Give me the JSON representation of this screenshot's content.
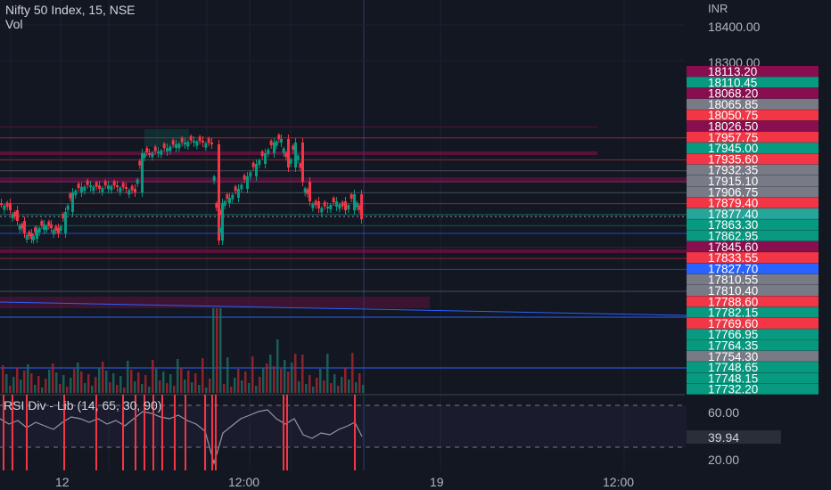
{
  "chart_title": "Nifty 50 Index, 15, NSE",
  "volume_label": "Vol",
  "currency": "INR",
  "rsi_title": "RSI Div - Lib (14, 65, 30, 90)",
  "price_axis_ticks": [
    "18400.00",
    "18300.00"
  ],
  "price_tags": [
    {
      "value": "18113.20",
      "color": "#880e4f"
    },
    {
      "value": "18110.45",
      "color": "#089981"
    },
    {
      "value": "18068.20",
      "color": "#880e4f"
    },
    {
      "value": "18065.85",
      "color": "#787b86"
    },
    {
      "value": "18050.75",
      "color": "#f23645"
    },
    {
      "value": "18026.50",
      "color": "#880e4f"
    },
    {
      "value": "17957.75",
      "color": "#f23645"
    },
    {
      "value": "17945.00",
      "color": "#089981"
    },
    {
      "value": "17935.60",
      "color": "#f23645"
    },
    {
      "value": "17932.35",
      "color": "#787b86"
    },
    {
      "value": "17915.10",
      "color": "#787b86"
    },
    {
      "value": "17906.75",
      "color": "#787b86"
    },
    {
      "value": "17879.40",
      "color": "#f23645"
    },
    {
      "value": "17877.40",
      "color": "#26a69a"
    },
    {
      "value": "17863.30",
      "color": "#089981"
    },
    {
      "value": "17862.95",
      "color": "#089981"
    },
    {
      "value": "17845.60",
      "color": "#880e4f"
    },
    {
      "value": "17833.55",
      "color": "#f23645"
    },
    {
      "value": "17827.70",
      "color": "#2962ff"
    },
    {
      "value": "17810.55",
      "color": "#787b86"
    },
    {
      "value": "17810.40",
      "color": "#787b86"
    },
    {
      "value": "17788.60",
      "color": "#f23645"
    },
    {
      "value": "17782.15",
      "color": "#089981"
    },
    {
      "value": "17769.60",
      "color": "#f23645"
    },
    {
      "value": "17766.95",
      "color": "#089981"
    },
    {
      "value": "17764.35",
      "color": "#089981"
    },
    {
      "value": "17754.30",
      "color": "#787b86"
    },
    {
      "value": "17748.65",
      "color": "#089981"
    },
    {
      "value": "17748.15",
      "color": "#089981"
    },
    {
      "value": "17732.20",
      "color": "#089981"
    }
  ],
  "rsi_axis": {
    "upper": "60.00",
    "lower": "20.00",
    "current": "39.94"
  },
  "time_axis": [
    "12",
    "12:00",
    "19",
    "12:00"
  ],
  "colors": {
    "background": "#131722",
    "up": "#089981",
    "down": "#f23645",
    "volume_up": "#a5252f",
    "volume_down": "#8a1f2a",
    "level_line": "#880e4f",
    "rsi_line": "#9598a1"
  }
}
